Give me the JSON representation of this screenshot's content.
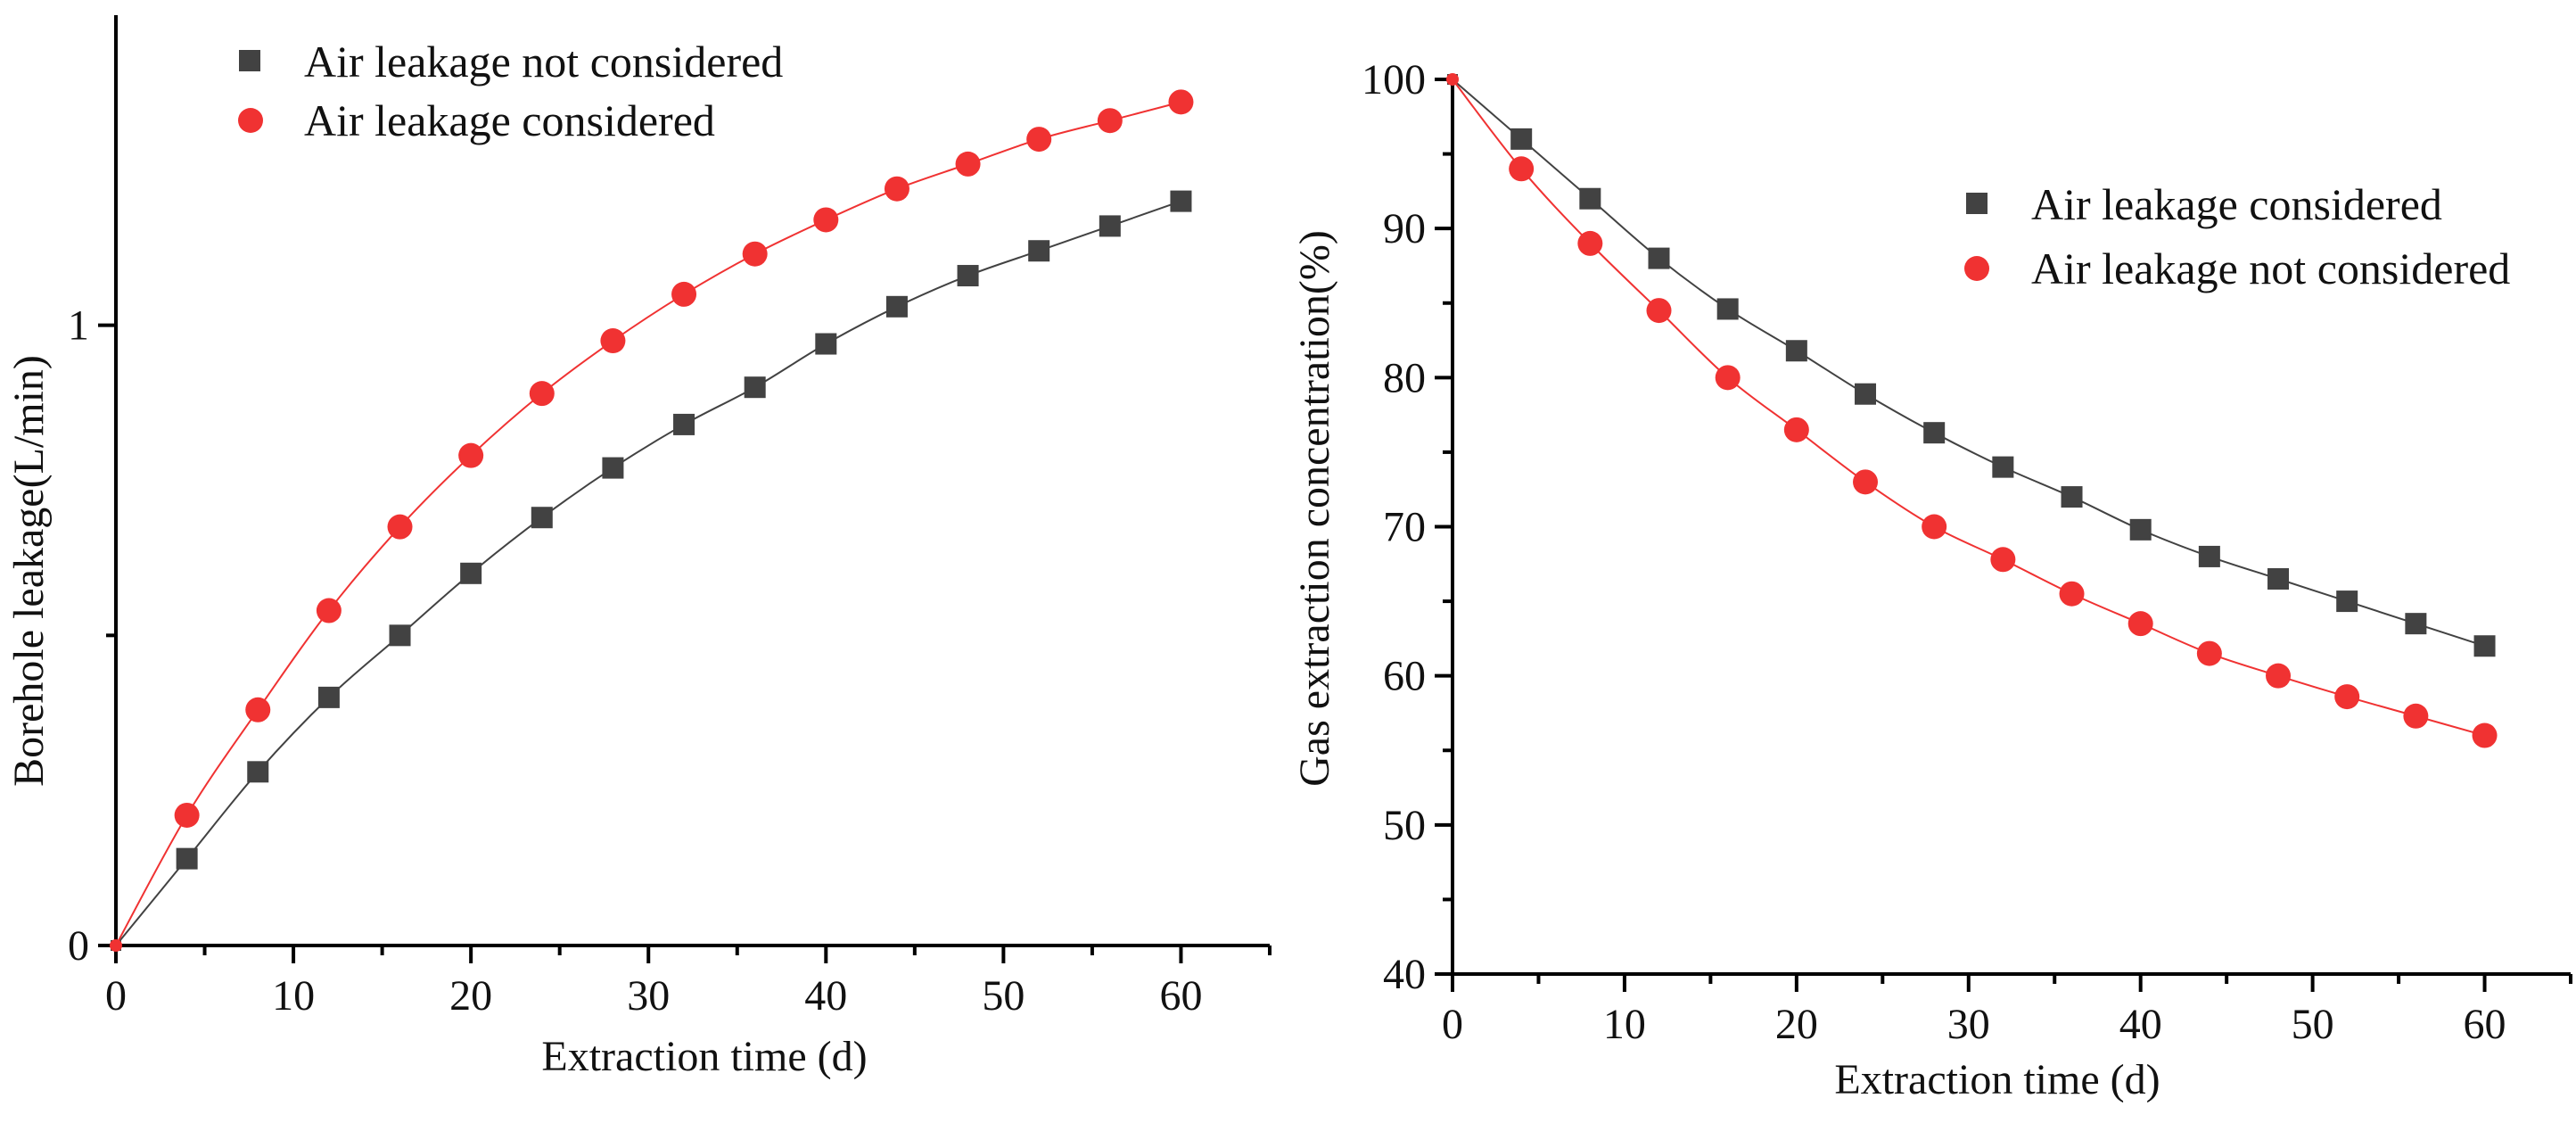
{
  "chart_data": [
    {
      "type": "line",
      "title": "",
      "xlabel": "Extraction time (d)",
      "ylabel": "Borehole leakage(L/min)",
      "xlim": [
        0,
        65
      ],
      "ylim": [
        0,
        1.5
      ],
      "xticks": [
        0,
        10,
        20,
        30,
        40,
        50,
        60
      ],
      "xtick_labels": [
        "0",
        "10",
        "20",
        "30",
        "40",
        "50",
        "60"
      ],
      "x_minor_ticks": [
        5,
        15,
        25,
        35,
        45,
        55
      ],
      "yticks": [
        0,
        1
      ],
      "ytick_labels": [
        "0",
        "1"
      ],
      "y_minor_ticks": [
        0.5
      ],
      "grid": false,
      "legend_position": "top-left",
      "x": [
        0,
        4,
        8,
        12,
        16,
        20,
        24,
        28,
        32,
        36,
        40,
        44,
        48,
        52,
        56,
        60
      ],
      "series": [
        {
          "name": "Air leakage not considered",
          "marker": "square",
          "color": "#424242",
          "values": [
            0,
            0.14,
            0.28,
            0.4,
            0.5,
            0.6,
            0.69,
            0.77,
            0.84,
            0.9,
            0.97,
            1.03,
            1.08,
            1.12,
            1.16,
            1.2
          ]
        },
        {
          "name": "Air leakage considered",
          "marker": "circle",
          "color": "#f03232",
          "values": [
            0,
            0.21,
            0.38,
            0.54,
            0.675,
            0.79,
            0.89,
            0.975,
            1.05,
            1.115,
            1.17,
            1.22,
            1.26,
            1.3,
            1.33,
            1.36
          ]
        }
      ]
    },
    {
      "type": "line",
      "title": "",
      "xlabel": "Extraction time (d)",
      "ylabel": "Gas extraction concentration(%)",
      "xlim": [
        0,
        65
      ],
      "ylim": [
        40,
        100
      ],
      "xticks": [
        0,
        10,
        20,
        30,
        40,
        50,
        60
      ],
      "xtick_labels": [
        "0",
        "10",
        "20",
        "30",
        "40",
        "50",
        "60"
      ],
      "x_minor_ticks": [
        5,
        15,
        25,
        35,
        45,
        55
      ],
      "yticks": [
        40,
        50,
        60,
        70,
        80,
        90,
        100
      ],
      "ytick_labels": [
        "40",
        "50",
        "60",
        "70",
        "80",
        "90",
        "100"
      ],
      "y_minor_ticks": [
        45,
        55,
        65,
        75,
        85,
        95
      ],
      "grid": false,
      "legend_position": "top-right",
      "x": [
        0,
        4,
        8,
        12,
        16,
        20,
        24,
        28,
        32,
        36,
        40,
        44,
        48,
        52,
        56,
        60
      ],
      "series": [
        {
          "name": "Air leakage  considered",
          "marker": "square",
          "color": "#424242",
          "values": [
            100,
            96.0,
            92.0,
            88.0,
            84.6,
            81.8,
            78.9,
            76.3,
            74.0,
            72.0,
            69.8,
            68.0,
            66.5,
            65.0,
            63.5,
            62.0
          ]
        },
        {
          "name": "Air leakage not considered",
          "marker": "circle",
          "color": "#f03232",
          "values": [
            100,
            94.0,
            89.0,
            84.5,
            80.0,
            76.5,
            73.0,
            70.0,
            67.8,
            65.5,
            63.5,
            61.5,
            60.0,
            58.6,
            57.3,
            56.0
          ]
        }
      ]
    }
  ]
}
